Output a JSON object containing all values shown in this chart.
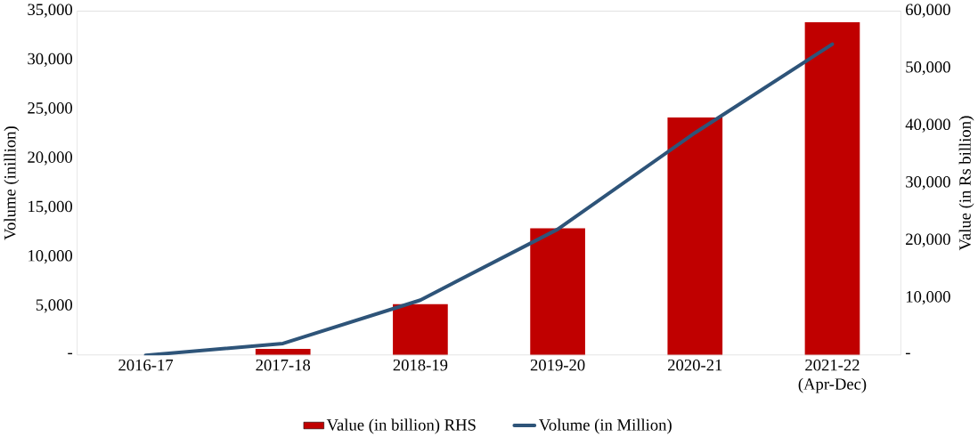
{
  "chart_data": {
    "type": "bar",
    "categories": [
      "2016-17",
      "2017-18",
      "2018-19",
      "2019-20",
      "2020-21",
      "2021-22 (Apr-Dec)"
    ],
    "ylabel": "Volume (inillion)",
    "y2label": "Value (in Rs billion)",
    "ylim": [
      0,
      35000
    ],
    "yticks": [
      {
        "value": 0,
        "label": "-"
      },
      {
        "value": 5000,
        "label": "5,000"
      },
      {
        "value": 10000,
        "label": "10,000"
      },
      {
        "value": 15000,
        "label": "15,000"
      },
      {
        "value": 20000,
        "label": "20,000"
      },
      {
        "value": 25000,
        "label": "25,000"
      },
      {
        "value": 30000,
        "label": "30,000"
      },
      {
        "value": 35000,
        "label": "35,000"
      }
    ],
    "y2lim": [
      0,
      60000
    ],
    "y2ticks": [
      {
        "value": 0,
        "label": "-"
      },
      {
        "value": 10000,
        "label": "10,000"
      },
      {
        "value": 20000,
        "label": "20,000"
      },
      {
        "value": 30000,
        "label": "30,000"
      },
      {
        "value": 40000,
        "label": "40,000"
      },
      {
        "value": 50000,
        "label": "50,000"
      },
      {
        "value": 60000,
        "label": "60,000"
      }
    ],
    "series": [
      {
        "name": "Value (in billion) RHS",
        "axis": "y2",
        "color": "#c00000",
        "values": [
          0,
          1100,
          8900,
          22100,
          41400,
          58000
        ]
      },
      {
        "name": "Volume (in Million)",
        "type": "line",
        "color": "#2e5479",
        "values": [
          0,
          1200,
          5600,
          12800,
          22600,
          31600
        ]
      }
    ],
    "legend": "bottom",
    "grid": false
  }
}
